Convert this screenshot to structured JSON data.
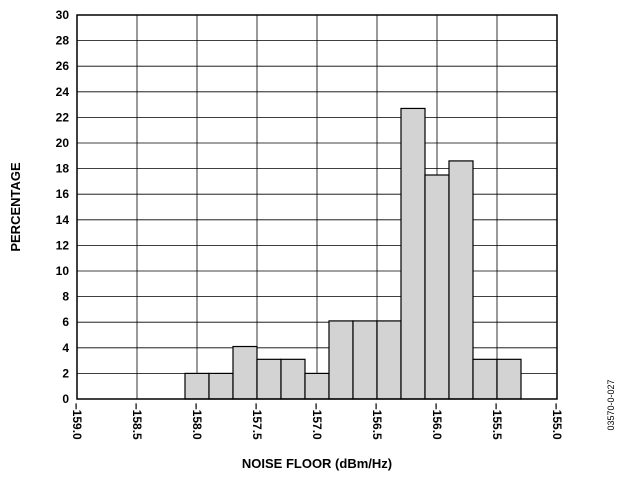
{
  "chart_data": {
    "type": "bar",
    "title": "",
    "xlabel": "NOISE FLOOR (dBm/Hz)",
    "ylabel": "PERCENTAGE",
    "xlim": [
      -159.0,
      -155.0
    ],
    "ylim": [
      0,
      30
    ],
    "grid": true,
    "bar_color": "#d3d3d3",
    "x_ticks": [
      -159.0,
      -158.5,
      -158.0,
      -157.5,
      -157.0,
      -156.5,
      -156.0,
      -155.5,
      -155.0
    ],
    "x_tick_labels": [
      "–159.0",
      "–158.5",
      "–158.0",
      "–157.5",
      "–157.0",
      "–156.5",
      "–156.0",
      "–155.5",
      "–155.0"
    ],
    "y_ticks": [
      0,
      2,
      4,
      6,
      8,
      10,
      12,
      14,
      16,
      18,
      20,
      22,
      24,
      26,
      28,
      30
    ],
    "y_tick_labels": [
      "0",
      "2",
      "4",
      "6",
      "8",
      "10",
      "12",
      "14",
      "16",
      "18",
      "20",
      "22",
      "24",
      "26",
      "28",
      "30"
    ],
    "bin_width": 0.2,
    "bin_starts": [
      -158.1,
      -157.9,
      -157.7,
      -157.5,
      -157.3,
      -157.1,
      -156.9,
      -156.7,
      -156.5,
      -156.3,
      -156.1,
      -155.9,
      -155.7,
      -155.5
    ],
    "values": [
      2.0,
      2.0,
      4.1,
      3.1,
      3.1,
      2.0,
      6.1,
      6.1,
      6.1,
      22.7,
      17.5,
      18.6,
      3.1,
      3.1
    ]
  },
  "figure_id": "03570-0-027"
}
